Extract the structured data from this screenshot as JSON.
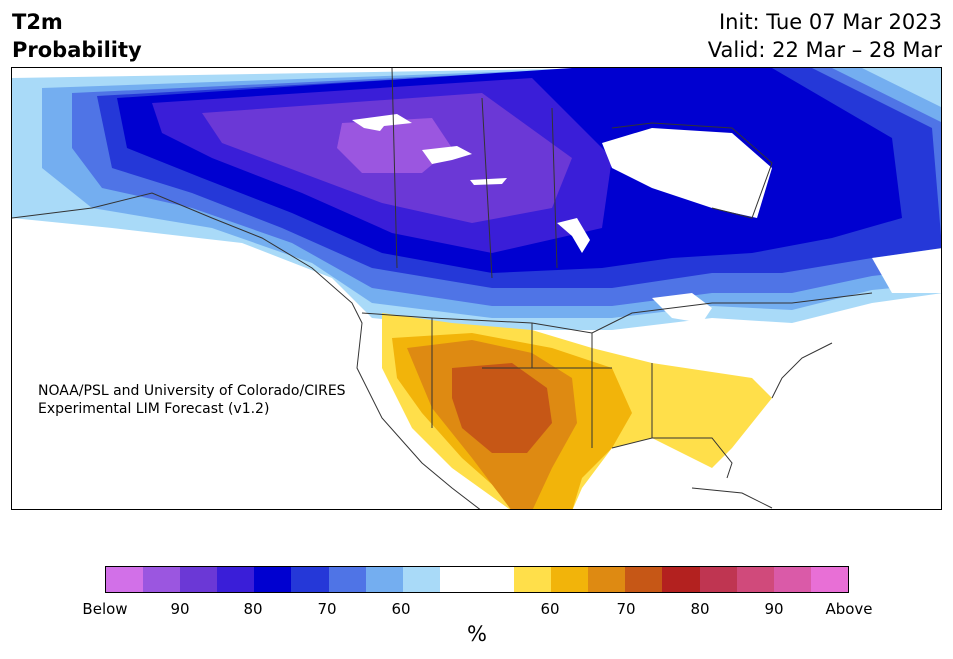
{
  "header": {
    "title_line1": "T2m",
    "title_line2": "Probability",
    "init": "Init: Tue 07 Mar 2023",
    "valid": "Valid: 22 Mar – 28 Mar"
  },
  "map": {
    "credit_line1": "NOAA/PSL and University of Colorado/CIRES",
    "credit_line2": "Experimental LIM Forecast (v1.2)"
  },
  "colorbar": {
    "colors": [
      "#d270e8",
      "#9b56e0",
      "#6b38d6",
      "#3a1ed8",
      "#0000d0",
      "#2538d8",
      "#4f74e6",
      "#74aef0",
      "#a9daf8",
      "#ffffff",
      "#ffffff",
      "#ffdf4a",
      "#f2b40a",
      "#de8a12",
      "#c65716",
      "#b3211f",
      "#bf3551",
      "#d04a7b",
      "#da5aa8",
      "#e86fd6"
    ],
    "ticks": [
      {
        "label": "Below"
      },
      {
        "label": "90"
      },
      {
        "label": "80"
      },
      {
        "label": "70"
      },
      {
        "label": "60"
      },
      {
        "label": "60"
      },
      {
        "label": "70"
      },
      {
        "label": "80"
      },
      {
        "label": "90"
      },
      {
        "label": "Above"
      }
    ],
    "unit": "%"
  }
}
